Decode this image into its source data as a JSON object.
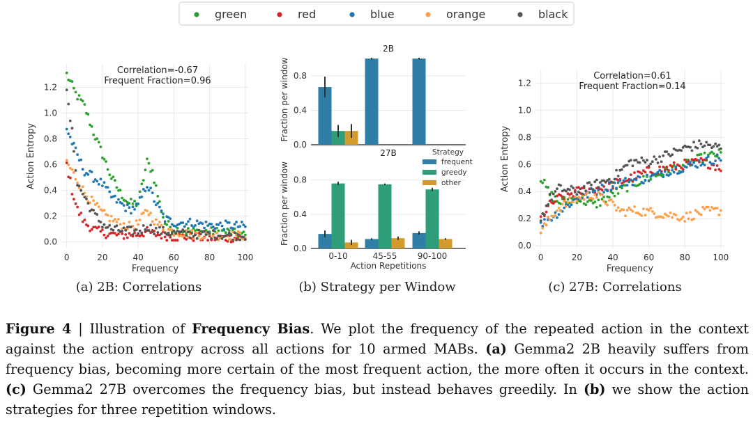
{
  "legend": {
    "entries": [
      {
        "label": "green",
        "color": "#2ca02c"
      },
      {
        "label": "red",
        "color": "#d62728"
      },
      {
        "label": "blue",
        "color": "#1f77b4"
      },
      {
        "label": "orange",
        "color": "#ff9f4a"
      },
      {
        "label": "black",
        "color": "#555555"
      }
    ]
  },
  "chart_data": [
    {
      "id": "a",
      "type": "scatter",
      "title": "",
      "xlabel": "Frequency",
      "ylabel": "Action Entropy",
      "xlim": [
        -3,
        102
      ],
      "ylim": [
        -0.05,
        1.38
      ],
      "xticks": [
        0,
        20,
        40,
        60,
        80,
        100
      ],
      "yticks": [
        0.0,
        0.2,
        0.4,
        0.6,
        0.8,
        1.0,
        1.2
      ],
      "tick_labels_y": [
        "0.0",
        "0.2",
        "0.4",
        "0.6",
        "0.8",
        "1.0",
        "1.2"
      ],
      "annotations": [
        "Correlation=-0.67",
        "Frequent Fraction=0.96"
      ],
      "series": [
        {
          "name": "green",
          "shape": [
            [
              0,
              1.3
            ],
            [
              5,
              1.15
            ],
            [
              10,
              1.05
            ],
            [
              15,
              0.85
            ],
            [
              20,
              0.68
            ],
            [
              25,
              0.5
            ],
            [
              30,
              0.38
            ],
            [
              35,
              0.3
            ],
            [
              40,
              0.3
            ],
            [
              45,
              0.62
            ],
            [
              48,
              0.55
            ],
            [
              52,
              0.3
            ],
            [
              55,
              0.15
            ],
            [
              60,
              0.1
            ],
            [
              70,
              0.08
            ],
            [
              80,
              0.08
            ],
            [
              90,
              0.08
            ],
            [
              100,
              0.05
            ]
          ]
        },
        {
          "name": "red",
          "shape": [
            [
              0,
              0.6
            ],
            [
              3,
              0.4
            ],
            [
              6,
              0.25
            ],
            [
              10,
              0.15
            ],
            [
              15,
              0.1
            ],
            [
              20,
              0.07
            ],
            [
              30,
              0.05
            ],
            [
              40,
              0.06
            ],
            [
              45,
              0.08
            ],
            [
              50,
              0.06
            ],
            [
              60,
              0.04
            ],
            [
              70,
              0.04
            ],
            [
              80,
              0.03
            ],
            [
              90,
              0.03
            ],
            [
              100,
              0.03
            ]
          ]
        },
        {
          "name": "blue",
          "shape": [
            [
              0,
              0.88
            ],
            [
              5,
              0.7
            ],
            [
              10,
              0.55
            ],
            [
              15,
              0.5
            ],
            [
              20,
              0.45
            ],
            [
              25,
              0.35
            ],
            [
              30,
              0.3
            ],
            [
              35,
              0.25
            ],
            [
              40,
              0.28
            ],
            [
              45,
              0.45
            ],
            [
              50,
              0.3
            ],
            [
              55,
              0.18
            ],
            [
              60,
              0.15
            ],
            [
              70,
              0.15
            ],
            [
              80,
              0.13
            ],
            [
              90,
              0.13
            ],
            [
              100,
              0.12
            ]
          ]
        },
        {
          "name": "orange",
          "shape": [
            [
              0,
              0.62
            ],
            [
              5,
              0.5
            ],
            [
              10,
              0.38
            ],
            [
              15,
              0.3
            ],
            [
              20,
              0.22
            ],
            [
              25,
              0.18
            ],
            [
              30,
              0.14
            ],
            [
              35,
              0.12
            ],
            [
              40,
              0.14
            ],
            [
              45,
              0.25
            ],
            [
              50,
              0.15
            ],
            [
              55,
              0.1
            ],
            [
              60,
              0.08
            ],
            [
              70,
              0.06
            ],
            [
              80,
              0.05
            ],
            [
              90,
              0.05
            ],
            [
              100,
              0.05
            ]
          ]
        },
        {
          "name": "black",
          "shape": [
            [
              0,
              1.15
            ],
            [
              3,
              0.85
            ],
            [
              6,
              0.45
            ],
            [
              10,
              0.35
            ],
            [
              15,
              0.22
            ],
            [
              20,
              0.14
            ],
            [
              25,
              0.1
            ],
            [
              30,
              0.09
            ],
            [
              40,
              0.08
            ],
            [
              45,
              0.12
            ],
            [
              50,
              0.09
            ],
            [
              60,
              0.07
            ],
            [
              70,
              0.06
            ],
            [
              80,
              0.06
            ],
            [
              90,
              0.05
            ],
            [
              100,
              0.05
            ]
          ]
        }
      ]
    },
    {
      "id": "b",
      "type": "bar",
      "panels": [
        {
          "title": "2B",
          "ylabel": "Fraction per window",
          "ylim": [
            0,
            1.05
          ],
          "yticks": [
            0.0,
            0.4,
            0.8
          ],
          "series": [
            {
              "name": "frequent",
              "values": [
                0.67,
                1.0,
                1.0
              ],
              "err": [
                0.12,
                0.01,
                0.01
              ]
            },
            {
              "name": "greedy",
              "values": [
                0.16,
                0,
                0
              ],
              "err": [
                0.07,
                0,
                0
              ]
            },
            {
              "name": "other",
              "values": [
                0.16,
                0,
                0
              ],
              "err": [
                0.08,
                0,
                0
              ]
            }
          ]
        },
        {
          "title": "27B",
          "ylabel": "Fraction per window",
          "ylim": [
            0,
            1.05
          ],
          "yticks": [
            0.0,
            0.4,
            0.8
          ],
          "series": [
            {
              "name": "frequent",
              "values": [
                0.17,
                0.11,
                0.18
              ],
              "err": [
                0.04,
                0.01,
                0.02
              ]
            },
            {
              "name": "greedy",
              "values": [
                0.76,
                0.75,
                0.69
              ],
              "err": [
                0.02,
                0.01,
                0.02
              ]
            },
            {
              "name": "other",
              "values": [
                0.07,
                0.12,
                0.11
              ],
              "err": [
                0.03,
                0.02,
                0.01
              ]
            }
          ]
        }
      ],
      "categories": [
        "0-10",
        "45-55",
        "90-100"
      ],
      "xlabel": "Action Repetitions",
      "tick_labels_y": [
        "0.0",
        "0.4",
        "0.8"
      ],
      "legend_title": "Strategy",
      "legend": [
        {
          "label": "frequent",
          "color": "#2f7ea6"
        },
        {
          "label": "greedy",
          "color": "#2e9e7a"
        },
        {
          "label": "other",
          "color": "#d39a2d"
        }
      ]
    },
    {
      "id": "c",
      "type": "scatter",
      "title": "",
      "xlabel": "Frequency",
      "ylabel": "Action Entropy",
      "xlim": [
        -3,
        102
      ],
      "ylim": [
        -0.02,
        1.3
      ],
      "xticks": [
        0,
        20,
        40,
        60,
        80,
        100
      ],
      "yticks": [
        0.0,
        0.2,
        0.4,
        0.6,
        0.8,
        1.0,
        1.2
      ],
      "tick_labels_y": [
        "0.0",
        "0.2",
        "0.4",
        "0.6",
        "0.8",
        "1.0",
        "1.2"
      ],
      "annotations": [
        "Correlation=0.61",
        "Frequent Fraction=0.14"
      ],
      "series": [
        {
          "name": "green",
          "shape": [
            [
              0,
              0.5
            ],
            [
              5,
              0.38
            ],
            [
              10,
              0.32
            ],
            [
              20,
              0.35
            ],
            [
              30,
              0.3
            ],
            [
              40,
              0.38
            ],
            [
              50,
              0.45
            ],
            [
              60,
              0.5
            ],
            [
              70,
              0.55
            ],
            [
              80,
              0.6
            ],
            [
              90,
              0.65
            ],
            [
              100,
              0.68
            ]
          ]
        },
        {
          "name": "red",
          "shape": [
            [
              0,
              0.2
            ],
            [
              5,
              0.3
            ],
            [
              10,
              0.35
            ],
            [
              20,
              0.4
            ],
            [
              30,
              0.42
            ],
            [
              40,
              0.45
            ],
            [
              50,
              0.5
            ],
            [
              60,
              0.55
            ],
            [
              70,
              0.57
            ],
            [
              80,
              0.6
            ],
            [
              90,
              0.62
            ],
            [
              100,
              0.58
            ]
          ]
        },
        {
          "name": "blue",
          "shape": [
            [
              0,
              0.15
            ],
            [
              5,
              0.2
            ],
            [
              10,
              0.25
            ],
            [
              20,
              0.35
            ],
            [
              30,
              0.4
            ],
            [
              40,
              0.45
            ],
            [
              50,
              0.48
            ],
            [
              60,
              0.5
            ],
            [
              70,
              0.55
            ],
            [
              80,
              0.58
            ],
            [
              90,
              0.62
            ],
            [
              100,
              0.65
            ]
          ]
        },
        {
          "name": "orange",
          "shape": [
            [
              0,
              0.1
            ],
            [
              5,
              0.2
            ],
            [
              10,
              0.28
            ],
            [
              20,
              0.35
            ],
            [
              30,
              0.38
            ],
            [
              40,
              0.3
            ],
            [
              45,
              0.25
            ],
            [
              50,
              0.26
            ],
            [
              60,
              0.25
            ],
            [
              70,
              0.23
            ],
            [
              80,
              0.21
            ],
            [
              90,
              0.25
            ],
            [
              100,
              0.26
            ]
          ]
        },
        {
          "name": "black",
          "shape": [
            [
              0,
              0.2
            ],
            [
              5,
              0.35
            ],
            [
              10,
              0.42
            ],
            [
              20,
              0.4
            ],
            [
              30,
              0.45
            ],
            [
              40,
              0.5
            ],
            [
              50,
              0.62
            ],
            [
              60,
              0.62
            ],
            [
              70,
              0.67
            ],
            [
              80,
              0.72
            ],
            [
              90,
              0.75
            ],
            [
              100,
              0.72
            ]
          ]
        }
      ]
    }
  ],
  "subcaptions": {
    "a": "(a)  2B: Correlations",
    "b": "(b)  Strategy per Window",
    "c": "(c)  27B: Correlations"
  },
  "caption": {
    "fig_label": "Figure 4",
    "sep": " | Illustration of ",
    "title": "Frequency Bias",
    "t1": ". We plot the frequency of the repeated action in the context against the action entropy across all actions for 10 armed MABs. ",
    "a_label": "(a)",
    "t2": " Gemma2 2B heavily suffers from frequency bias, becoming more certain of the most frequent action, the more often it occurs in the context. ",
    "c_label": "(c)",
    "t3": " Gemma2 27B overcomes the frequency bias, but instead behaves greedily. In ",
    "b_label": "(b)",
    "t4": " we show the action strategies for three repetition windows."
  }
}
